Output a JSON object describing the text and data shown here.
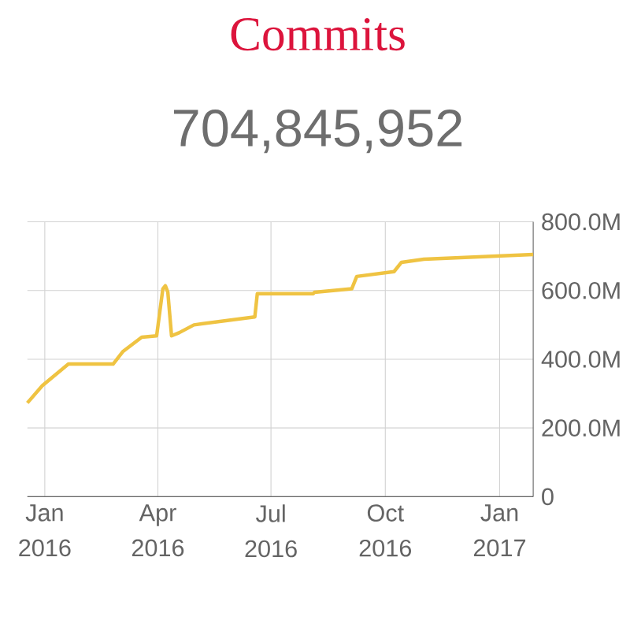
{
  "chart_data": {
    "type": "line",
    "title": "Commits",
    "subtitle": "704,845,952",
    "x": [
      "2015-12-18",
      "2015-12-30",
      "2016-01-20",
      "2016-02-25",
      "2016-03-04",
      "2016-03-19",
      "2016-03-31",
      "2016-04-05",
      "2016-04-07",
      "2016-04-09",
      "2016-04-12",
      "2016-04-18",
      "2016-04-30",
      "2016-06-18",
      "2016-06-20",
      "2016-08-04",
      "2016-08-05",
      "2016-09-04",
      "2016-09-08",
      "2016-10-08",
      "2016-10-14",
      "2016-11-01",
      "2017-01-28"
    ],
    "series": [
      {
        "color": "#efc342",
        "values": [
          273,
          323,
          386,
          386,
          423,
          464,
          468,
          605,
          614,
          595,
          468,
          477,
          500,
          523,
          591,
          591,
          595,
          605,
          641,
          655,
          682,
          691,
          705
        ]
      }
    ],
    "xlim": [
      "2015-12-18",
      "2017-01-28"
    ],
    "xticks": [
      {
        "value": "2016-01-01",
        "label": "Jan 2016"
      },
      {
        "value": "2016-04-01",
        "label": "Apr 2016"
      },
      {
        "value": "2016-07-01",
        "label": "Jul 2016"
      },
      {
        "value": "2016-10-01",
        "label": "Oct 2016"
      },
      {
        "value": "2017-01-01",
        "label": "Jan 2017"
      }
    ],
    "ylim": [
      0,
      800
    ],
    "yticks": [
      0,
      {
        "value": 200,
        "label": "200.0M"
      },
      {
        "value": 400,
        "label": "400.0M"
      },
      {
        "value": 600,
        "label": "600.0M"
      },
      {
        "value": 800,
        "label": "800.0M"
      }
    ],
    "grid": true,
    "marker": "none",
    "line_style": "solid"
  }
}
